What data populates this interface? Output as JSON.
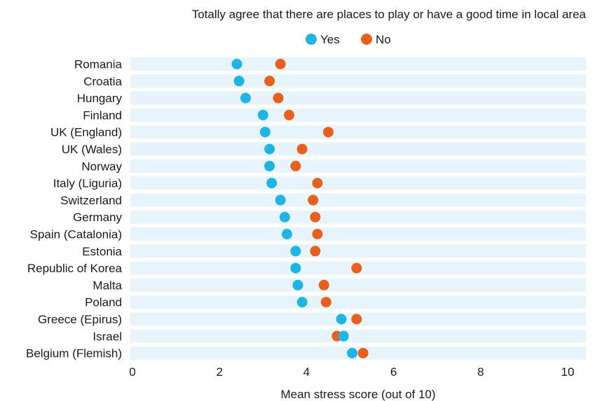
{
  "chart_data": {
    "type": "scatter",
    "title": "Totally agree that there are places to play or have a good time in local area",
    "xlabel": "Mean stress score (out of 10)",
    "ylabel": "",
    "xlim": [
      0,
      10
    ],
    "xticks": [
      "0",
      "2",
      "4",
      "6",
      "8",
      "10"
    ],
    "grid": false,
    "legend_position": "top",
    "categories": [
      "Romania",
      "Croatia",
      "Hungary",
      "Finland",
      "UK (England)",
      "UK (Wales)",
      "Norway",
      "Italy (Liguria)",
      "Switzerland",
      "Germany",
      "Spain (Catalonia)",
      "Estonia",
      "Republic of Korea",
      "Malta",
      "Poland",
      "Greece (Epirus)",
      "Israel",
      "Belgium (Flemish)"
    ],
    "series": [
      {
        "name": "Yes",
        "color": "#1cb5e5",
        "values": [
          2.4,
          2.45,
          2.6,
          3.0,
          3.05,
          3.15,
          3.15,
          3.2,
          3.4,
          3.5,
          3.55,
          3.75,
          3.75,
          3.8,
          3.9,
          4.8,
          4.85,
          5.05
        ]
      },
      {
        "name": "No",
        "color": "#e8601c",
        "values": [
          3.4,
          3.15,
          3.35,
          3.6,
          4.5,
          3.9,
          3.75,
          4.25,
          4.15,
          4.2,
          4.25,
          4.2,
          5.15,
          4.4,
          4.45,
          5.15,
          4.7,
          5.3
        ]
      }
    ],
    "row_band_color": "#e8f4fb"
  }
}
